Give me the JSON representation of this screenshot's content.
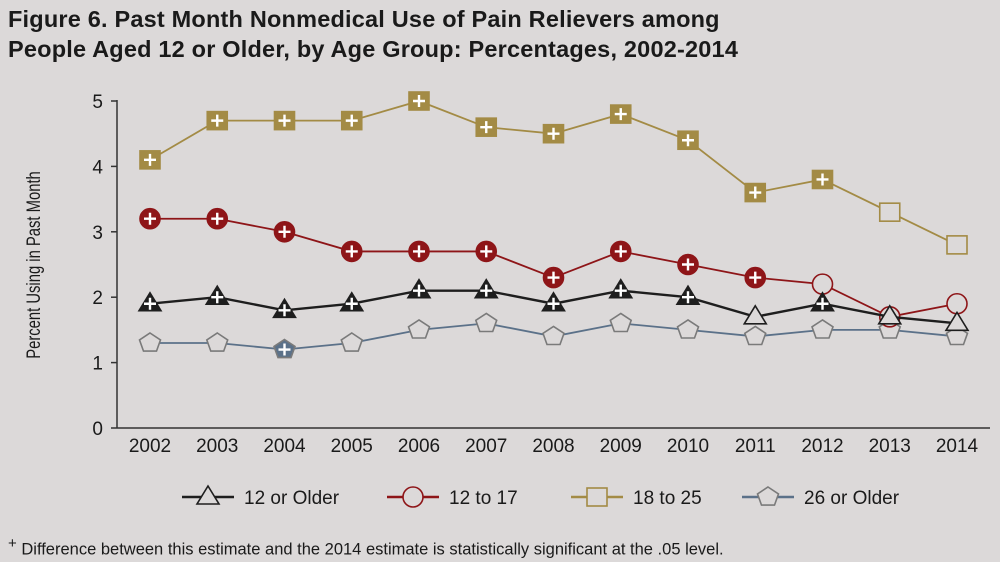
{
  "chart_data": {
    "type": "line",
    "title_line1": "Figure 6. Past Month Nonmedical Use of Pain Relievers among",
    "title_line2": "People Aged 12 or Older, by Age Group: Percentages, 2002-2014",
    "ylabel": "Percent Using in Past Month",
    "xlabel": "",
    "ylim": [
      0,
      5
    ],
    "yticks": [
      "0",
      "1",
      "2",
      "3",
      "4",
      "5"
    ],
    "categories": [
      "2002",
      "2003",
      "2004",
      "2005",
      "2006",
      "2007",
      "2008",
      "2009",
      "2010",
      "2011",
      "2012",
      "2013",
      "2014"
    ],
    "legend_position": "bottom",
    "series": [
      {
        "name": "12 or Older",
        "marker": "triangle",
        "color": "#1e1e1e",
        "values": [
          1.9,
          2.0,
          1.8,
          1.9,
          2.1,
          2.1,
          1.9,
          2.1,
          2.0,
          1.7,
          1.9,
          1.7,
          1.6
        ],
        "significant": [
          1,
          1,
          1,
          1,
          1,
          1,
          1,
          1,
          1,
          0,
          1,
          0,
          0
        ]
      },
      {
        "name": "12 to 17",
        "marker": "circle",
        "color": "#8e1518",
        "values": [
          3.2,
          3.2,
          3.0,
          2.7,
          2.7,
          2.7,
          2.3,
          2.7,
          2.5,
          2.3,
          2.2,
          1.7,
          1.9
        ],
        "significant": [
          1,
          1,
          1,
          1,
          1,
          1,
          1,
          1,
          1,
          1,
          0,
          0,
          0
        ]
      },
      {
        "name": "18 to 25",
        "marker": "square",
        "color": "#a38b45",
        "values": [
          4.1,
          4.7,
          4.7,
          4.7,
          5.0,
          4.6,
          4.5,
          4.8,
          4.4,
          3.6,
          3.8,
          3.3,
          2.8
        ],
        "significant": [
          1,
          1,
          1,
          1,
          1,
          1,
          1,
          1,
          1,
          1,
          1,
          0,
          0
        ]
      },
      {
        "name": "26 or Older",
        "marker": "pentagon",
        "color": "#5b7189",
        "values": [
          1.3,
          1.3,
          1.2,
          1.3,
          1.5,
          1.6,
          1.4,
          1.6,
          1.5,
          1.4,
          1.5,
          1.5,
          1.4
        ],
        "significant": [
          0,
          0,
          1,
          0,
          0,
          0,
          0,
          0,
          0,
          0,
          0,
          0,
          0
        ]
      }
    ],
    "footnote_symbol": "+",
    "footnote": "Difference between this estimate and the 2014 estimate is statistically significant at the .05 level."
  }
}
